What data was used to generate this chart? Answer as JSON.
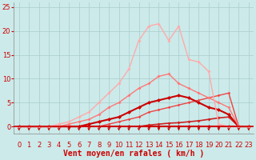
{
  "bg_color": "#cceaea",
  "grid_color": "#aacccc",
  "xlabel": "Vent moyen/en rafales ( km/h )",
  "xlabel_color": "#cc0000",
  "xlabel_fontsize": 7,
  "tick_color": "#cc0000",
  "tick_fontsize": 6,
  "xlim": [
    -0.5,
    23.5
  ],
  "ylim": [
    -1.5,
    26
  ],
  "yticks": [
    0,
    5,
    10,
    15,
    20,
    25
  ],
  "xticks": [
    0,
    1,
    2,
    3,
    4,
    5,
    6,
    7,
    8,
    9,
    10,
    11,
    12,
    13,
    14,
    15,
    16,
    17,
    18,
    19,
    20,
    21,
    22,
    23
  ],
  "series": [
    {
      "x": [
        0,
        1,
        2,
        3,
        4,
        5,
        6,
        7,
        8,
        9,
        10,
        11,
        12,
        13,
        14,
        15,
        16,
        17,
        18,
        19,
        20,
        21,
        22,
        23
      ],
      "y": [
        0,
        0,
        0,
        0,
        0,
        0,
        0,
        0,
        0,
        0,
        0,
        0,
        0,
        0,
        0,
        0,
        0,
        0,
        0,
        0,
        0,
        0,
        0,
        0
      ],
      "color": "#cc0000",
      "lw": 1.5,
      "ms": 2.5
    },
    {
      "x": [
        0,
        1,
        2,
        3,
        4,
        5,
        6,
        7,
        8,
        9,
        10,
        11,
        12,
        13,
        14,
        15,
        16,
        17,
        18,
        19,
        20,
        21,
        22,
        23
      ],
      "y": [
        0,
        0,
        0,
        0,
        0,
        0,
        0,
        0,
        0,
        0,
        0,
        0,
        0,
        0.3,
        0.5,
        0.7,
        0.8,
        1.0,
        1.2,
        1.5,
        1.8,
        2.0,
        0,
        0
      ],
      "color": "#cc2222",
      "lw": 1.2,
      "ms": 2.0
    },
    {
      "x": [
        0,
        1,
        2,
        3,
        4,
        5,
        6,
        7,
        8,
        9,
        10,
        11,
        12,
        13,
        14,
        15,
        16,
        17,
        18,
        19,
        20,
        21,
        22,
        23
      ],
      "y": [
        0,
        0,
        0,
        0,
        0,
        0,
        0,
        0,
        0,
        0.5,
        1,
        1.5,
        2,
        3,
        3.5,
        4,
        4.5,
        5,
        5.5,
        6,
        6.5,
        7,
        0,
        0
      ],
      "color": "#ee4444",
      "lw": 1.0,
      "ms": 1.8
    },
    {
      "x": [
        0,
        1,
        2,
        3,
        4,
        5,
        6,
        7,
        8,
        9,
        10,
        11,
        12,
        13,
        14,
        15,
        16,
        17,
        18,
        19,
        20,
        21,
        22,
        23
      ],
      "y": [
        0,
        0,
        0,
        0,
        0,
        0,
        0,
        0.5,
        1,
        1.5,
        2,
        3,
        4,
        5,
        5.5,
        6,
        6.5,
        6,
        5,
        4,
        3.5,
        2.5,
        0,
        0
      ],
      "color": "#cc0000",
      "lw": 1.5,
      "ms": 2.5
    },
    {
      "x": [
        0,
        1,
        2,
        3,
        4,
        5,
        6,
        7,
        8,
        9,
        10,
        11,
        12,
        13,
        14,
        15,
        16,
        17,
        18,
        19,
        20,
        21,
        22,
        23
      ],
      "y": [
        0,
        0,
        0,
        0,
        0,
        0.5,
        1,
        1.5,
        2.5,
        4,
        5,
        6.5,
        8,
        9,
        10.5,
        11,
        9,
        8,
        7,
        6,
        5,
        4,
        0,
        0
      ],
      "color": "#ff7777",
      "lw": 1.0,
      "ms": 2.0
    },
    {
      "x": [
        0,
        1,
        2,
        3,
        4,
        5,
        6,
        7,
        8,
        9,
        10,
        11,
        12,
        13,
        14,
        15,
        16,
        17,
        18,
        19,
        20,
        21,
        22,
        23
      ],
      "y": [
        0,
        0,
        0,
        0,
        0.5,
        1,
        2,
        3,
        5,
        7,
        9,
        12,
        18,
        21,
        21.5,
        18,
        21,
        14,
        13.5,
        11.5,
        0.5,
        0,
        0,
        0
      ],
      "color": "#ffaaaa",
      "lw": 1.0,
      "ms": 2.0
    }
  ],
  "arrow_color": "#cc0000"
}
